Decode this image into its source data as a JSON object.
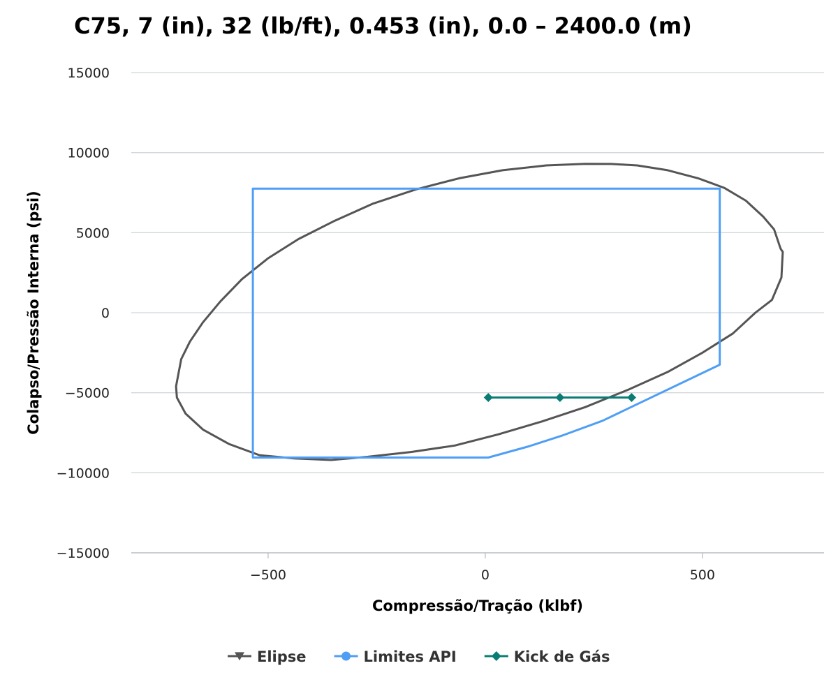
{
  "chart_data": {
    "type": "line",
    "title": "C75, 7 (in), 32 (lb/ft), 0.453 (in), 0.0 – 2400.0 (m)",
    "xlabel": "Compressão/Tração (klbf)",
    "ylabel": "Colapso/Pressão Interna (psi)",
    "xlim": [
      -815,
      780
    ],
    "ylim": [
      -15000,
      15000
    ],
    "xticks": [
      -500,
      0,
      500
    ],
    "yticks": [
      15000,
      10000,
      5000,
      0,
      -5000,
      -10000,
      -15000
    ],
    "xtick_labels": [
      "−500",
      "0",
      "500"
    ],
    "ytick_labels": [
      "15000",
      "10000",
      "5000",
      "0",
      "−5000",
      "−10000",
      "−15000"
    ],
    "grid": "horizontal",
    "legend_position": "bottom-center",
    "series": [
      {
        "name": "Elipse",
        "color": "#555555",
        "marker": "triangle-down",
        "x": [
          -712,
          -700,
          -680,
          -650,
          -610,
          -560,
          -500,
          -430,
          -350,
          -260,
          -160,
          -60,
          40,
          140,
          230,
          290,
          350,
          420,
          490,
          550,
          600,
          640,
          665,
          680,
          685,
          682,
          660,
          622,
          570,
          500,
          420,
          330,
          230,
          130,
          30,
          -70,
          -170,
          -270,
          -355,
          -440,
          -520,
          -590,
          -650,
          -690,
          -710,
          -712
        ],
        "y": [
          -4600,
          -2900,
          -1800,
          -600,
          700,
          2100,
          3400,
          4600,
          5700,
          6800,
          7700,
          8400,
          8900,
          9200,
          9300,
          9290,
          9200,
          8900,
          8400,
          7800,
          7000,
          6000,
          5200,
          4000,
          3800,
          2200,
          800,
          0,
          -1300,
          -2500,
          -3700,
          -4800,
          -5900,
          -6800,
          -7600,
          -8300,
          -8700,
          -9000,
          -9200,
          -9100,
          -8900,
          -8200,
          -7300,
          -6300,
          -5300,
          -4600
        ]
      },
      {
        "name": "Limites API",
        "color": "#4f9ef5",
        "marker": "circle",
        "x": [
          7,
          -535,
          -535,
          540,
          540,
          270,
          180,
          100,
          7
        ],
        "y": [
          -9050,
          -9050,
          7750,
          7750,
          -3250,
          -6750,
          -7650,
          -8350,
          -9050
        ]
      },
      {
        "name": "Kick de Gás",
        "color": "#0a7c75",
        "marker": "diamond",
        "x": [
          7,
          172,
          337
        ],
        "y": [
          -5300,
          -5300,
          -5300
        ]
      }
    ]
  }
}
